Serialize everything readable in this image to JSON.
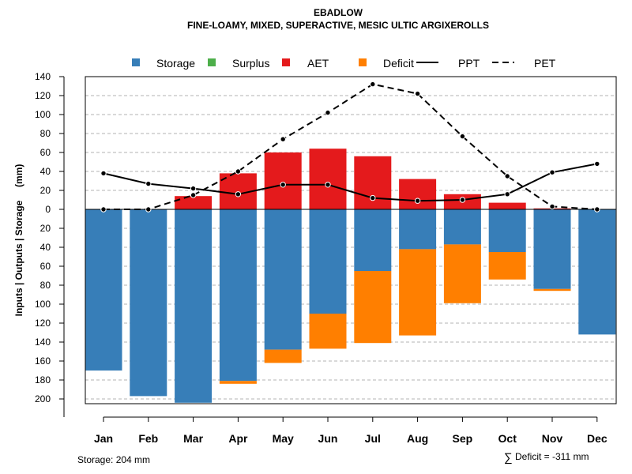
{
  "chart_data": {
    "type": "bar",
    "title": "EBADLOW",
    "subtitle": "FINE-LOAMY, MIXED, SUPERACTIVE, MESIC ULTIC ARGIXEROLLS",
    "ylabel": "Inputs | Outputs | Storage     (mm)",
    "categories": [
      "Jan",
      "Feb",
      "Mar",
      "Apr",
      "May",
      "Jun",
      "Jul",
      "Aug",
      "Sep",
      "Oct",
      "Nov",
      "Dec"
    ],
    "ylim": [
      -204,
      145
    ],
    "y_ticks": [
      140,
      120,
      100,
      80,
      60,
      40,
      20,
      0,
      -20,
      -40,
      -60,
      -80,
      -100,
      -120,
      -140,
      -160,
      -180,
      -200
    ],
    "y_tick_labels": [
      "140",
      "120",
      "100",
      "80",
      "60",
      "40",
      "20",
      "0",
      "20",
      "40",
      "60",
      "80",
      "100",
      "120",
      "140",
      "160",
      "180",
      "200"
    ],
    "grid": true,
    "legend_position": "top",
    "legend": [
      {
        "name": "Storage",
        "type": "box",
        "color": "#377EB8"
      },
      {
        "name": "Surplus",
        "type": "box",
        "color": "#4DAF4A"
      },
      {
        "name": "AET",
        "type": "box",
        "color": "#E41A1C"
      },
      {
        "name": "Deficit",
        "type": "box",
        "color": "#FF7F00"
      },
      {
        "name": "PPT",
        "type": "solid-line",
        "color": "#000000"
      },
      {
        "name": "PET",
        "type": "dashed-line",
        "color": "#000000"
      }
    ],
    "series": [
      {
        "name": "AET",
        "color": "#E41A1C",
        "values": [
          0,
          0,
          14,
          38,
          60,
          64,
          56,
          32,
          16,
          7,
          1,
          0
        ]
      },
      {
        "name": "Storage",
        "color": "#377EB8",
        "values": [
          -170,
          -197,
          -204,
          -181,
          -148,
          -110,
          -65,
          -42,
          -37,
          -45,
          -84,
          -132
        ]
      },
      {
        "name": "Deficit",
        "color": "#FF7F00",
        "values": [
          0,
          0,
          0,
          -3,
          -14,
          -37,
          -76,
          -91,
          -62,
          -29,
          -2,
          0
        ]
      },
      {
        "name": "Surplus",
        "color": "#4DAF4A",
        "values": [
          0,
          0,
          0,
          0,
          0,
          0,
          0,
          0,
          0,
          0,
          0,
          0
        ]
      },
      {
        "name": "PPT",
        "color": "#000000",
        "values": [
          38,
          27,
          22,
          16,
          26,
          26,
          12,
          9,
          10,
          16,
          39,
          48
        ]
      },
      {
        "name": "PET",
        "color": "#000000",
        "values": [
          0,
          0,
          15,
          40,
          74,
          102,
          132,
          122,
          77,
          35,
          3,
          0
        ]
      }
    ],
    "footer_left": "Storage: 204 mm",
    "footer_right_symbol": "∑",
    "footer_right": "Deficit = -311 mm"
  }
}
